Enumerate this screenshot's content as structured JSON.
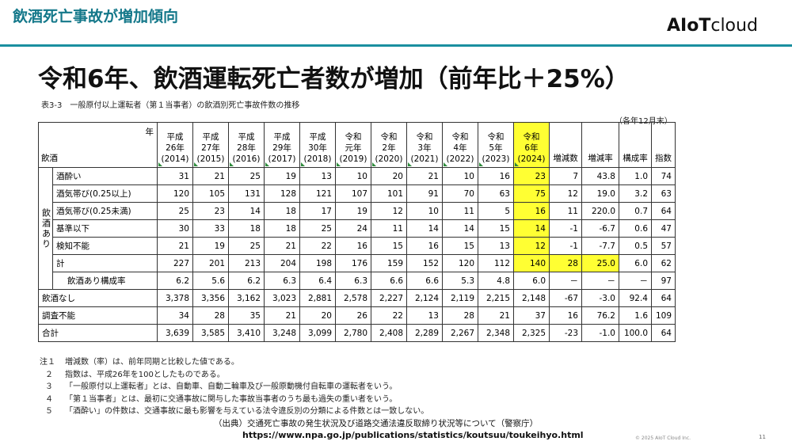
{
  "header": {
    "section_title": "飲酒死亡事故が増加傾向",
    "logo_ai": "AIoT",
    "logo_cloud": "cloud",
    "headline": "令和6年、飲酒運転死亡者数が増加（前年比＋25%）"
  },
  "table": {
    "caption": "表3-3　一般原付以上運転者（第１当事者）の飲酒別死亡事故件数の推移",
    "unit_note": "（各年12月末）",
    "corner_year": "年",
    "corner_label": "飲酒",
    "years": [
      {
        "era": "平成",
        "year": "26年",
        "western": "(2014)"
      },
      {
        "era": "平成",
        "year": "27年",
        "western": "(2015)"
      },
      {
        "era": "平成",
        "year": "28年",
        "western": "(2016)"
      },
      {
        "era": "平成",
        "year": "29年",
        "western": "(2017)"
      },
      {
        "era": "平成",
        "year": "30年",
        "western": "(2018)"
      },
      {
        "era": "令和",
        "year": "元年",
        "western": "(2019)"
      },
      {
        "era": "令和",
        "year": "2年",
        "western": "(2020)"
      },
      {
        "era": "令和",
        "year": "3年",
        "western": "(2021)"
      },
      {
        "era": "令和",
        "year": "4年",
        "western": "(2022)"
      },
      {
        "era": "令和",
        "year": "5年",
        "western": "(2023)"
      },
      {
        "era": "令和",
        "year": "6年",
        "western": "(2024)"
      }
    ],
    "extra_headers": [
      "増減数",
      "増減率",
      "構成率",
      "指数"
    ],
    "group_label": "飲酒あり",
    "sub_rows": [
      {
        "label": "酒酔い",
        "values": [
          "31",
          "21",
          "25",
          "19",
          "13",
          "10",
          "20",
          "21",
          "10",
          "16",
          "23"
        ],
        "extras": [
          "7",
          "43.8",
          "1.0",
          "74"
        ]
      },
      {
        "label": "酒気帯び(0.25以上)",
        "values": [
          "120",
          "105",
          "131",
          "128",
          "121",
          "107",
          "101",
          "91",
          "70",
          "63",
          "75"
        ],
        "extras": [
          "12",
          "19.0",
          "3.2",
          "63"
        ]
      },
      {
        "label": "酒気帯び(0.25未満)",
        "values": [
          "25",
          "23",
          "14",
          "18",
          "17",
          "19",
          "12",
          "10",
          "11",
          "5",
          "16"
        ],
        "extras": [
          "11",
          "220.0",
          "0.7",
          "64"
        ]
      },
      {
        "label": "基準以下",
        "values": [
          "30",
          "33",
          "18",
          "18",
          "25",
          "24",
          "11",
          "14",
          "14",
          "15",
          "14"
        ],
        "extras": [
          "-1",
          "-6.7",
          "0.6",
          "47"
        ]
      },
      {
        "label": "検知不能",
        "values": [
          "21",
          "19",
          "25",
          "21",
          "22",
          "16",
          "15",
          "16",
          "15",
          "13",
          "12"
        ],
        "extras": [
          "-1",
          "-7.7",
          "0.5",
          "57"
        ]
      }
    ],
    "subtotal": {
      "label": "計",
      "values": [
        "227",
        "201",
        "213",
        "204",
        "198",
        "176",
        "159",
        "152",
        "120",
        "112",
        "140"
      ],
      "extras": [
        "28",
        "25.0",
        "6.0",
        "62"
      ]
    },
    "ratio": {
      "label": "飲酒あり構成率",
      "values": [
        "6.2",
        "5.6",
        "6.2",
        "6.3",
        "6.4",
        "6.3",
        "6.6",
        "6.6",
        "5.3",
        "4.8",
        "6.0"
      ],
      "extras": [
        "－",
        "－",
        "－",
        "97"
      ]
    },
    "bottom_rows": [
      {
        "label": "飲酒なし",
        "values": [
          "3,378",
          "3,356",
          "3,162",
          "3,023",
          "2,881",
          "2,578",
          "2,227",
          "2,124",
          "2,119",
          "2,215",
          "2,148"
        ],
        "extras": [
          "-67",
          "-3.0",
          "92.4",
          "64"
        ]
      },
      {
        "label": "調査不能",
        "values": [
          "34",
          "28",
          "35",
          "21",
          "20",
          "26",
          "22",
          "13",
          "28",
          "21",
          "37"
        ],
        "extras": [
          "16",
          "76.2",
          "1.6",
          "109"
        ]
      },
      {
        "label": "合計",
        "values": [
          "3,639",
          "3,585",
          "3,410",
          "3,248",
          "3,099",
          "2,780",
          "2,408",
          "2,289",
          "2,267",
          "2,348",
          "2,325"
        ],
        "extras": [
          "-23",
          "-1.0",
          "100.0",
          "64"
        ]
      }
    ]
  },
  "notes": [
    {
      "num": "注１",
      "text": "増減数（率）は、前年同期と比較した値である。"
    },
    {
      "num": "２",
      "text": "指数は、平成26年を100としたものである。"
    },
    {
      "num": "３",
      "text": "「一般原付以上運転者」とは、自動車、自動二輪車及び一般原動機付自転車の運転者をいう。"
    },
    {
      "num": "４",
      "text": "「第１当事者」とは、最初に交通事故に関与した事故当事者のうち最も過失の重い者をいう。"
    },
    {
      "num": "５",
      "text": "「酒酔い」の件数は、交通事故に最も影響を与えている法令違反別の分類による件数とは一致しない。"
    }
  ],
  "source": "（出典）交通死亡事故の発生状況及び道路交通法違反取締り状況等について（警察庁）",
  "url": "https://www.npa.go.jp/publications/statistics/koutsuu/toukeihyo.html",
  "footer": {
    "copyright": "© 2025 AIoT Cloud Inc.",
    "page_number": "11"
  },
  "colors": {
    "accent": "#1a8fa0",
    "highlight": "#ffff33",
    "marker": "#2e8b3c"
  }
}
